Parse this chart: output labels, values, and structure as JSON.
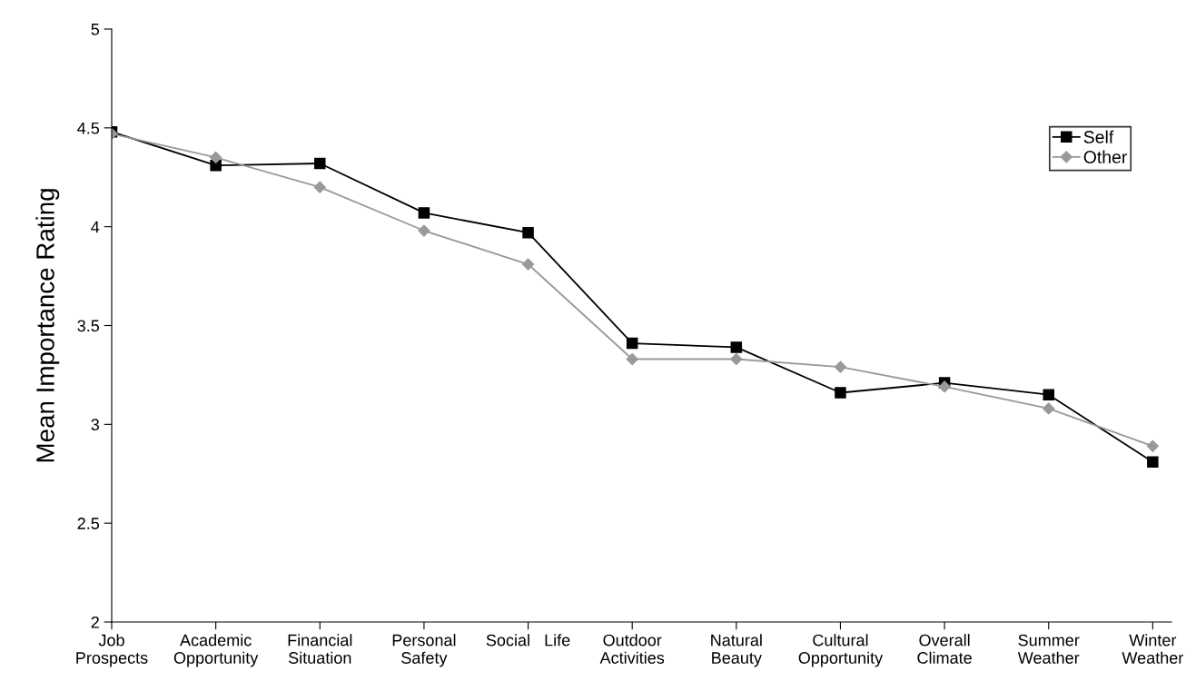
{
  "chart_data": {
    "type": "line",
    "ylabel": "Mean Importance Rating",
    "categories": [
      "Job\nProspects",
      "Academic\nOpportunity",
      "Financial\nSituation",
      "Personal\nSafety",
      "Social   Life",
      "Outdoor\nActivities",
      "Natural\nBeauty",
      "Cultural\nOpportunity",
      "Overall\nClimate",
      "Summer\nWeather",
      "Winter\nWeather"
    ],
    "series": [
      {
        "name": "Self",
        "color": "#000000",
        "marker": "square",
        "values": [
          4.48,
          4.31,
          4.32,
          4.07,
          3.97,
          3.41,
          3.39,
          3.16,
          3.21,
          3.15,
          2.81
        ]
      },
      {
        "name": "Other",
        "color": "#999999",
        "marker": "diamond",
        "values": [
          4.47,
          4.35,
          4.2,
          3.98,
          3.81,
          3.33,
          3.33,
          3.29,
          3.19,
          3.08,
          2.89
        ]
      }
    ],
    "ylim": [
      2,
      5
    ],
    "yticks": [
      2,
      2.5,
      3,
      3.5,
      4,
      4.5,
      5
    ],
    "grid": false,
    "legend": "top right",
    "line_style": "solid"
  }
}
